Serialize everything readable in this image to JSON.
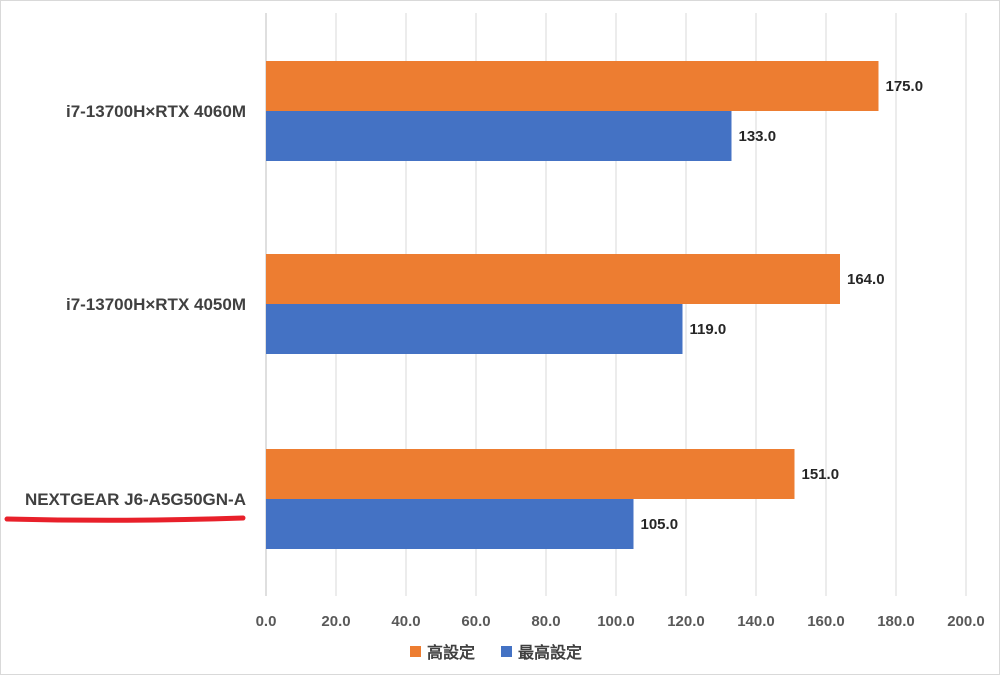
{
  "chart_data": {
    "type": "bar",
    "orientation": "horizontal",
    "categories": [
      "i7-13700H×RTX 4060M",
      "i7-13700H×RTX 4050M",
      "NEXTGEAR J6-A5G50GN-A"
    ],
    "series": [
      {
        "name": "高設定",
        "color": "#ED7D31",
        "values": [
          175.0,
          164.0,
          151.0
        ]
      },
      {
        "name": "最高設定",
        "color": "#4472C4",
        "values": [
          133.0,
          119.0,
          105.0
        ]
      }
    ],
    "xlim": [
      0,
      200
    ],
    "xticks": [
      "0.0",
      "20.0",
      "40.0",
      "60.0",
      "80.0",
      "100.0",
      "120.0",
      "140.0",
      "160.0",
      "180.0",
      "200.0"
    ],
    "grid": "vertical",
    "legend_position": "bottom",
    "highlighted_category": "NEXTGEAR J6-A5G50GN-A",
    "highlight_color": "#E8202A"
  }
}
